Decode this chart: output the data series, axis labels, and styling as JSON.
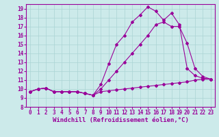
{
  "xlabel": "Windchill (Refroidissement éolien,°C)",
  "bg_color": "#cceaea",
  "line_color": "#990099",
  "grid_color": "#aad4d4",
  "xlim": [
    -0.5,
    23.5
  ],
  "ylim": [
    8,
    19.5
  ],
  "xticks": [
    0,
    1,
    2,
    3,
    4,
    5,
    6,
    7,
    8,
    9,
    10,
    11,
    12,
    13,
    14,
    15,
    16,
    17,
    18,
    19,
    20,
    21,
    22,
    23
  ],
  "yticks": [
    8,
    9,
    10,
    11,
    12,
    13,
    14,
    15,
    16,
    17,
    18,
    19
  ],
  "line1_x": [
    0,
    1,
    2,
    3,
    4,
    5,
    6,
    7,
    8,
    9,
    10,
    11,
    12,
    13,
    14,
    15,
    16,
    17,
    18,
    19,
    20,
    21,
    22,
    23
  ],
  "line1_y": [
    9.7,
    10.0,
    10.1,
    9.7,
    9.7,
    9.7,
    9.7,
    9.5,
    9.3,
    9.7,
    9.8,
    9.9,
    10.0,
    10.1,
    10.2,
    10.3,
    10.4,
    10.5,
    10.6,
    10.7,
    10.8,
    11.0,
    11.1,
    11.1
  ],
  "line2_x": [
    0,
    1,
    2,
    3,
    4,
    5,
    6,
    7,
    8,
    9,
    10,
    11,
    12,
    13,
    14,
    15,
    16,
    17,
    18,
    19,
    20,
    21,
    22,
    23
  ],
  "line2_y": [
    9.7,
    10.0,
    10.1,
    9.7,
    9.7,
    9.7,
    9.7,
    9.5,
    9.3,
    10.0,
    11.0,
    12.0,
    13.0,
    14.0,
    15.0,
    16.0,
    17.2,
    17.5,
    17.0,
    17.0,
    15.1,
    12.3,
    11.4,
    11.1
  ],
  "line3_x": [
    0,
    1,
    2,
    3,
    4,
    5,
    6,
    7,
    8,
    9,
    10,
    11,
    12,
    13,
    14,
    15,
    16,
    17,
    18,
    19,
    20,
    21,
    22,
    23
  ],
  "line3_y": [
    9.7,
    10.0,
    10.1,
    9.7,
    9.7,
    9.7,
    9.7,
    9.5,
    9.3,
    10.5,
    12.8,
    15.0,
    16.0,
    17.5,
    18.3,
    19.2,
    18.7,
    17.7,
    18.5,
    17.2,
    12.3,
    11.5,
    11.2,
    11.1
  ],
  "tick_fontsize": 5.5,
  "xlabel_fontsize": 6.5,
  "marker": "D",
  "markersize": 2.0,
  "linewidth": 0.8
}
